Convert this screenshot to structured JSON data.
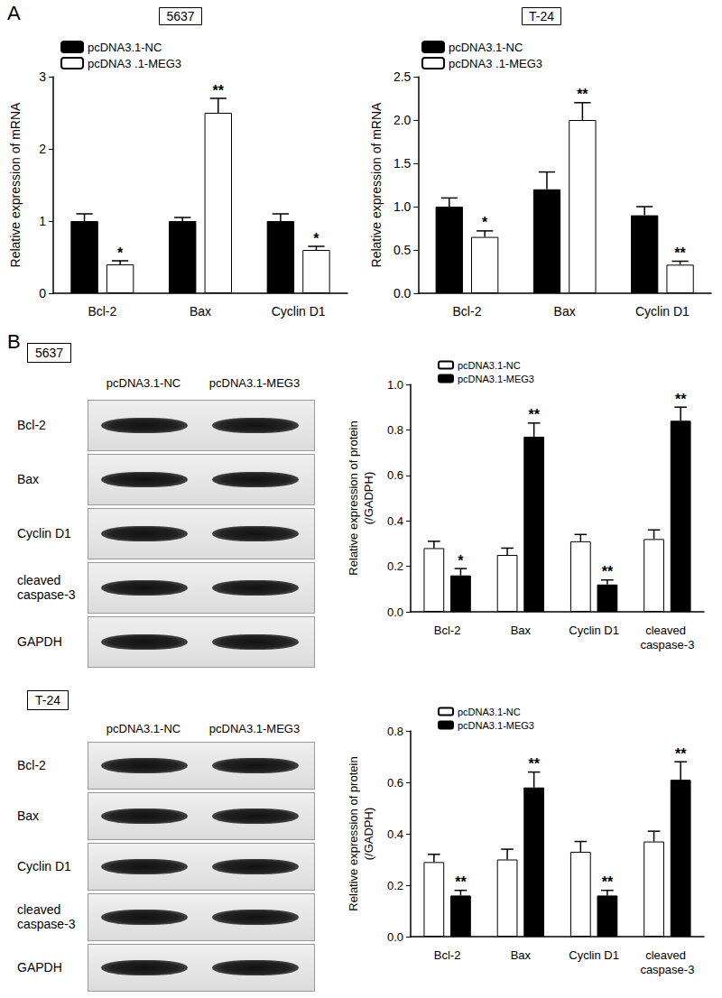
{
  "figure": {
    "panel_labels": [
      "A",
      "B"
    ]
  },
  "chart_data": [
    {
      "type": "bar",
      "title": "5637",
      "y_label": [
        "Relative expression of mRNA"
      ],
      "categories": [
        "Bcl-2",
        "Bax",
        "Cyclin D1"
      ],
      "series": [
        {
          "name": "pcDNA3.1-NC",
          "color": "#000000",
          "values": [
            1.0,
            1.0,
            1.0
          ],
          "errors": [
            0.1,
            0.05,
            0.1
          ]
        },
        {
          "name": "pcDNA3 .1-MEG3",
          "color": "#ffffff",
          "values": [
            0.4,
            2.5,
            0.6
          ],
          "errors": [
            0.05,
            0.2,
            0.05
          ],
          "significance": [
            "*",
            "**",
            "*"
          ]
        }
      ],
      "ylim": [
        0,
        3
      ],
      "yticks": [
        0,
        1,
        2,
        3
      ],
      "grid": false,
      "legend": "top-left"
    },
    {
      "type": "bar",
      "title": "T-24",
      "y_label": [
        "Relative expression of mRNA"
      ],
      "categories": [
        "Bcl-2",
        "Bax",
        "Cyclin D1"
      ],
      "series": [
        {
          "name": "pcDNA3.1-NC",
          "color": "#000000",
          "values": [
            1.0,
            1.2,
            0.9
          ],
          "errors": [
            0.1,
            0.2,
            0.1
          ]
        },
        {
          "name": "pcDNA3 .1-MEG3",
          "color": "#ffffff",
          "values": [
            0.65,
            2.0,
            0.33
          ],
          "errors": [
            0.07,
            0.2,
            0.04
          ],
          "significance": [
            "*",
            "**",
            "**"
          ]
        }
      ],
      "ylim": [
        0,
        2.5
      ],
      "yticks": [
        {
          "value": 0,
          "label": "0.0"
        },
        0.5,
        {
          "value": 1,
          "label": "1.0"
        },
        1.5,
        {
          "value": 2,
          "label": "2.0"
        },
        2.5
      ],
      "grid": false,
      "legend": "top-left"
    },
    {
      "type": "bar",
      "y_label": [
        "Relative expression of protein",
        "(/GADPH)"
      ],
      "categories": [
        "Bcl-2",
        "Bax",
        "Cyclin D1",
        "cleaved caspase-3"
      ],
      "series": [
        {
          "name": "pcDNA3.1-NC",
          "color": "#ffffff",
          "values": [
            0.28,
            0.25,
            0.31,
            0.32
          ],
          "errors": [
            0.03,
            0.03,
            0.03,
            0.04
          ]
        },
        {
          "name": "pcDNA3.1-MEG3",
          "color": "#000000",
          "values": [
            0.16,
            0.77,
            0.12,
            0.84
          ],
          "errors": [
            0.03,
            0.06,
            0.02,
            0.06
          ],
          "significance": [
            "*",
            "**",
            "**",
            "**"
          ]
        }
      ],
      "ylim": [
        0,
        1
      ],
      "yticks": [
        {
          "value": 0,
          "label": "0.0"
        },
        0.2,
        0.4,
        0.6,
        0.8,
        {
          "value": 1,
          "label": "1.0"
        }
      ],
      "grid": false,
      "legend": "top-left"
    },
    {
      "type": "bar",
      "y_label": [
        "Relative expression of protein",
        "(/GADPH)"
      ],
      "categories": [
        "Bcl-2",
        "Bax",
        "Cyclin D1",
        "cleaved caspase-3"
      ],
      "series": [
        {
          "name": "pcDNA3.1-NC",
          "color": "#ffffff",
          "values": [
            0.29,
            0.3,
            0.33,
            0.37
          ],
          "errors": [
            0.03,
            0.04,
            0.04,
            0.04
          ]
        },
        {
          "name": "pcDNA3.1-MEG3",
          "color": "#000000",
          "values": [
            0.16,
            0.58,
            0.16,
            0.61
          ],
          "errors": [
            0.02,
            0.06,
            0.02,
            0.07
          ],
          "significance": [
            "**",
            "**",
            "**",
            "**"
          ]
        }
      ],
      "ylim": [
        0,
        0.8
      ],
      "yticks": [
        {
          "value": 0,
          "label": "0.0"
        },
        0.2,
        0.4,
        0.6,
        0.8
      ],
      "grid": false,
      "legend": "top-left"
    }
  ],
  "blots": [
    {
      "title": "5637",
      "columns": [
        "pcDNA3.1-NC",
        "pcDNA3.1-MEG3"
      ],
      "rows": [
        "Bcl-2",
        "Bax",
        "Cyclin D1",
        "cleaved caspase-3",
        "GAPDH"
      ]
    },
    {
      "title": "T-24",
      "columns": [
        "pcDNA3.1-NC",
        "pcDNA3.1-MEG3"
      ],
      "rows": [
        "Bcl-2",
        "Bax",
        "Cyclin D1",
        "cleaved caspase-3",
        "GAPDH"
      ]
    }
  ]
}
